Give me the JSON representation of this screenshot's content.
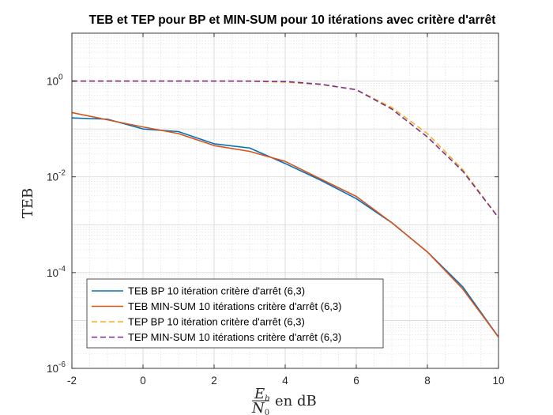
{
  "chart_data": {
    "type": "line",
    "title": "TEB et TEP pour BP et MIN-SUM pour 10 itérations avec critère d'arrêt",
    "xlabel": {
      "numerator_main": "E",
      "numerator_sub": "b",
      "denominator_main": "N",
      "denominator_sub": "0",
      "suffix": "en dB"
    },
    "ylabel": "TEB",
    "y_scale": "log",
    "xlim": [
      -2,
      10
    ],
    "ylim": [
      1e-06,
      10
    ],
    "x_ticks": [
      -2,
      0,
      2,
      4,
      6,
      8,
      10
    ],
    "y_ticks": [
      {
        "value": 1,
        "base": "10",
        "exp": "0"
      },
      {
        "value": 0.01,
        "base": "10",
        "exp": "-2"
      },
      {
        "value": 0.0001,
        "base": "10",
        "exp": "-4"
      },
      {
        "value": 1e-06,
        "base": "10",
        "exp": "-6"
      }
    ],
    "grid": true,
    "minor_grid": true,
    "legend_position": "bottom-left",
    "series": [
      {
        "name": "TEB BP 10 itération critère d'arrêt (6,3)",
        "color": "#0072BD",
        "dash": "solid",
        "x": [
          -2,
          -1,
          0,
          1,
          2,
          3,
          4,
          5,
          6,
          7,
          8,
          9,
          10
        ],
        "y": [
          0.17,
          0.16,
          0.1,
          0.088,
          0.049,
          0.04,
          0.019,
          0.0085,
          0.0035,
          0.0011,
          0.00027,
          5e-05,
          4.5e-06
        ]
      },
      {
        "name": "TEB MIN-SUM 10 itérations critère d'arrêt (6,3)",
        "color": "#D95319",
        "dash": "solid",
        "x": [
          -2,
          -1,
          0,
          1,
          2,
          3,
          4,
          5,
          6,
          7,
          8,
          9,
          10
        ],
        "y": [
          0.22,
          0.155,
          0.11,
          0.08,
          0.045,
          0.034,
          0.021,
          0.009,
          0.0039,
          0.0011,
          0.00027,
          4.5e-05,
          4.5e-06
        ]
      },
      {
        "name": "TEP BP 10 itération critère d'arrêt (6,3)",
        "color": "#EDB120",
        "dash": "dashed",
        "x": [
          -2,
          -1,
          0,
          1,
          2,
          3,
          4,
          5,
          6,
          7,
          8,
          9,
          10
        ],
        "y": [
          1,
          1,
          1,
          1,
          1,
          0.99,
          0.95,
          0.85,
          0.66,
          0.28,
          0.08,
          0.014,
          0.0014
        ]
      },
      {
        "name": "TEP MIN-SUM 10 itérations critère d'arrêt (6,3)",
        "color": "#7E2F8E",
        "dash": "dashed",
        "x": [
          -2,
          -1,
          0,
          1,
          2,
          3,
          4,
          5,
          6,
          7,
          8,
          9,
          10
        ],
        "y": [
          1,
          1,
          1,
          1,
          1,
          1,
          0.98,
          0.86,
          0.66,
          0.26,
          0.068,
          0.013,
          0.0014
        ]
      }
    ]
  }
}
